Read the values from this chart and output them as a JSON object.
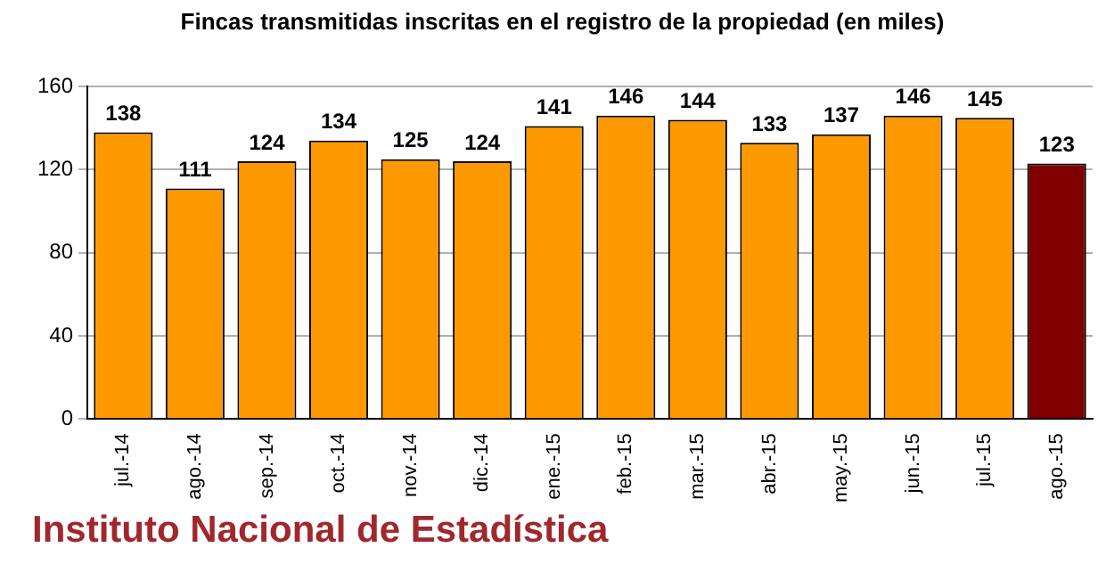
{
  "chart_data": {
    "type": "bar",
    "title": "Fincas transmitidas inscritas en el registro de la propiedad (en miles)",
    "categories": [
      "jul.-14",
      "ago.-14",
      "sep.-14",
      "oct.-14",
      "nov.-14",
      "dic.-14",
      "ene.-15",
      "feb.-15",
      "mar.-15",
      "abr.-15",
      "may.-15",
      "jun.-15",
      "jul.-15",
      "ago.-15"
    ],
    "values": [
      138,
      111,
      124,
      134,
      125,
      124,
      141,
      146,
      144,
      133,
      137,
      146,
      145,
      123
    ],
    "colors": [
      "#ff9900",
      "#ff9900",
      "#ff9900",
      "#ff9900",
      "#ff9900",
      "#ff9900",
      "#ff9900",
      "#ff9900",
      "#ff9900",
      "#ff9900",
      "#ff9900",
      "#ff9900",
      "#ff9900",
      "#800000"
    ],
    "ylim": [
      0,
      160
    ],
    "yticks": [
      0,
      40,
      80,
      120,
      160
    ],
    "grid": "y",
    "legend": false,
    "data_labels": true,
    "annotations": [
      "Instituto Nacional de Estadística"
    ]
  }
}
